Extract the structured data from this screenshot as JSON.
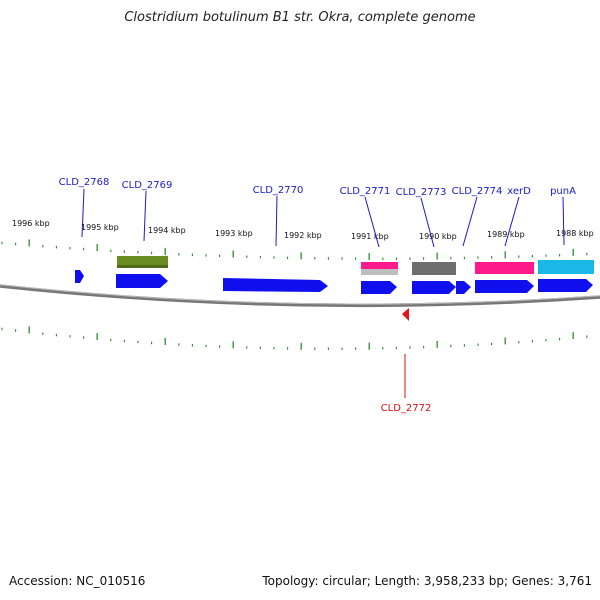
{
  "title": "Clostridium botulinum B1 str. Okra, complete genome",
  "footer": {
    "accession": "Accession: NC_010516",
    "summary": "Topology: circular; Length: 3,958,233 bp; Genes: 3,761"
  },
  "colors": {
    "cds": "#1010ee",
    "gene_label": "#1a1acc",
    "reverse_label": "#dd1111",
    "tick": "#2e8b2e",
    "backbone": "#777777",
    "olive": "#6b8e23",
    "magenta": "#ff1a8c",
    "gray": "#6e6e6e",
    "cyan": "#1ab8e6"
  },
  "kbp_labels": [
    "1996 kbp",
    "1995 kbp",
    "1994 kbp",
    "1993 kbp",
    "1992 kbp",
    "1991 kbp",
    "1990 kbp",
    "1989 kbp",
    "1988 kbp"
  ],
  "genes_forward": [
    "CLD_2768",
    "CLD_2769",
    "CLD_2770",
    "CLD_2771",
    "CLD_2773",
    "CLD_2774",
    "xerD",
    "punA"
  ],
  "genes_reverse": [
    "CLD_2772"
  ]
}
